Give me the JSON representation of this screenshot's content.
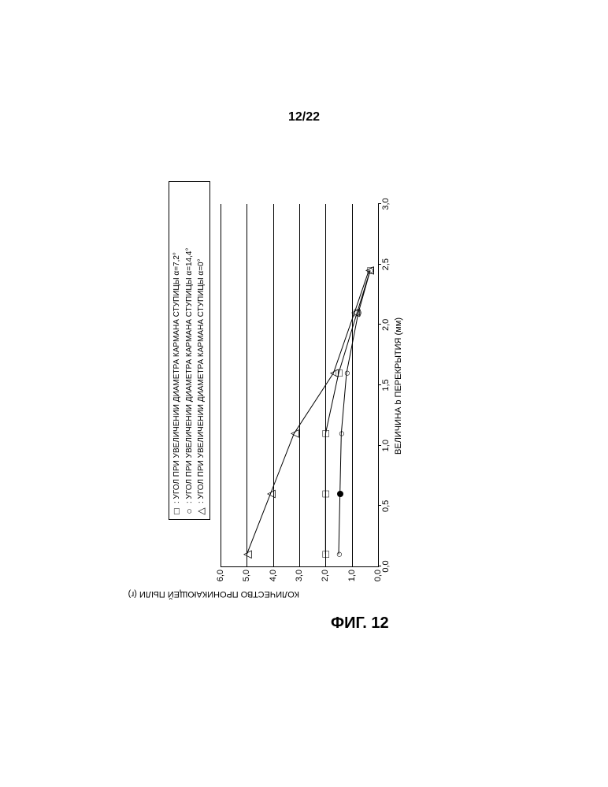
{
  "page_number": "12/22",
  "figure_caption": "ФИГ. 12",
  "chart": {
    "type": "line",
    "background_color": "#ffffff",
    "grid_color": "#000000",
    "line_color": "#000000",
    "x_axis": {
      "title": "ВЕЛИЧИНА b ПЕРЕКРЫТИЯ (мм)",
      "min": 0.0,
      "max": 3.0,
      "ticks": [
        0.0,
        0.5,
        1.0,
        1.5,
        2.0,
        2.5,
        3.0
      ],
      "tick_labels": [
        "0,0",
        "0,5",
        "1,0",
        "1,5",
        "2,0",
        "2,5",
        "3,0"
      ],
      "label_fontsize": 11
    },
    "y_axis": {
      "title": "КОЛИЧЕСТВО ПРОНИКАЮЩЕЙ ПЫЛИ (г)",
      "min": 0.0,
      "max": 6.0,
      "ticks": [
        0.0,
        1.0,
        2.0,
        3.0,
        4.0,
        5.0,
        6.0
      ],
      "tick_labels": [
        "0,0",
        "1,0",
        "2,0",
        "3,0",
        "4,0",
        "5,0",
        "6,0"
      ],
      "label_fontsize": 11
    },
    "legend": {
      "border_color": "#000000",
      "fontsize": 10,
      "items": [
        {
          "marker": "square",
          "glyph": "□",
          "label": ": УГОЛ ПРИ УВЕЛИЧЕНИИ ДИАМЕТРА КАРМАНА СТУПИЦЫ α=7,2°"
        },
        {
          "marker": "circle",
          "glyph": "○",
          "label": ": УГОЛ ПРИ УВЕЛИЧЕНИИ ДИАМЕТРА КАРМАНА СТУПИЦЫ α=14,4°"
        },
        {
          "marker": "triangle",
          "glyph": "△",
          "label": ": УГОЛ ПРИ УВЕЛИЧЕНИИ ДИАМЕТРА КАРМАНА СТУПИЦЫ α=0°"
        }
      ]
    },
    "series": [
      {
        "name": "alpha_7_2",
        "marker": "square",
        "glyph": "□",
        "color": "#000000",
        "line_width": 1,
        "points": [
          {
            "x": 0.1,
            "y": 2.0
          },
          {
            "x": 0.6,
            "y": 2.0
          },
          {
            "x": 1.1,
            "y": 2.0
          },
          {
            "x": 1.6,
            "y": 1.5
          },
          {
            "x": 2.1,
            "y": 0.8
          },
          {
            "x": 2.45,
            "y": 0.3
          }
        ]
      },
      {
        "name": "alpha_14_4",
        "marker": "circle",
        "glyph": "○",
        "color": "#000000",
        "line_width": 1,
        "points": [
          {
            "x": 0.1,
            "y": 1.5
          },
          {
            "x": 0.6,
            "y": 1.45,
            "filled": true
          },
          {
            "x": 1.1,
            "y": 1.4
          },
          {
            "x": 1.6,
            "y": 1.2
          },
          {
            "x": 2.1,
            "y": 0.75
          },
          {
            "x": 2.45,
            "y": 0.3
          }
        ]
      },
      {
        "name": "alpha_0",
        "marker": "triangle",
        "glyph": "△",
        "color": "#000000",
        "line_width": 1,
        "points": [
          {
            "x": 0.1,
            "y": 5.0
          },
          {
            "x": 0.6,
            "y": 4.1
          },
          {
            "x": 1.1,
            "y": 3.2
          },
          {
            "x": 1.6,
            "y": 1.7
          },
          {
            "x": 2.1,
            "y": 0.9
          },
          {
            "x": 2.45,
            "y": 0.35
          }
        ]
      }
    ]
  }
}
